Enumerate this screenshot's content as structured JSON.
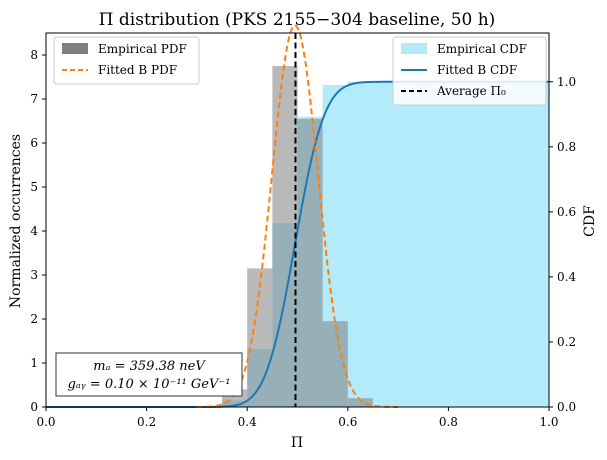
{
  "chart_data": {
    "type": "histogram",
    "title": "Π distribution (PKS 2155−304 baseline, 50 h)",
    "xlabel": "Π",
    "ylabel_left": "Normalized occurrences",
    "ylabel_right": "CDF",
    "xlim": [
      0.0,
      1.0
    ],
    "ylim_left": [
      0,
      8.5
    ],
    "ylim_right": [
      0,
      1.15
    ],
    "xticks": [
      "0.0",
      "0.2",
      "0.4",
      "0.6",
      "0.8",
      "1.0"
    ],
    "xtick_values": [
      0.0,
      0.2,
      0.4,
      0.6,
      0.8,
      1.0
    ],
    "yticks_left": [
      "0",
      "1",
      "2",
      "3",
      "4",
      "5",
      "6",
      "7",
      "8"
    ],
    "ytick_left_values": [
      0,
      1,
      2,
      3,
      4,
      5,
      6,
      7,
      8
    ],
    "yticks_right": [
      "0.0",
      "0.2",
      "0.4",
      "0.6",
      "0.8",
      "1.0"
    ],
    "ytick_right_values": [
      0.0,
      0.2,
      0.4,
      0.6,
      0.8,
      1.0
    ],
    "histogram": {
      "bin_edges": [
        0.35,
        0.4,
        0.45,
        0.5,
        0.55,
        0.6,
        0.65
      ],
      "values": [
        0.4,
        3.15,
        7.75,
        6.55,
        1.95,
        0.2
      ],
      "color": "#808080"
    },
    "fitted_pdf": {
      "mean": 0.495,
      "std": 0.046,
      "color": "#ff7f0e"
    },
    "cdf_color": "#1f77b4",
    "empirical_cdf_fill": "#b3ebfb",
    "average_pi0": 0.496,
    "legend_left": [
      {
        "label": "Empirical PDF",
        "kind": "patch",
        "color": "#808080"
      },
      {
        "label": "Fitted B PDF",
        "kind": "dashed",
        "color": "#ff7f0e"
      }
    ],
    "legend_right": [
      {
        "label": "Empirical CDF",
        "kind": "patch",
        "color": "#b3ebfb"
      },
      {
        "label": "Fitted B CDF",
        "kind": "line",
        "color": "#1f77b4"
      },
      {
        "label": "Average Π₀",
        "kind": "dashed",
        "color": "#000000"
      }
    ],
    "annotation": {
      "line1": "mₐ = 359.38 neV",
      "line2": "gₐᵧ = 0.10 × 10⁻¹¹ GeV⁻¹"
    }
  }
}
